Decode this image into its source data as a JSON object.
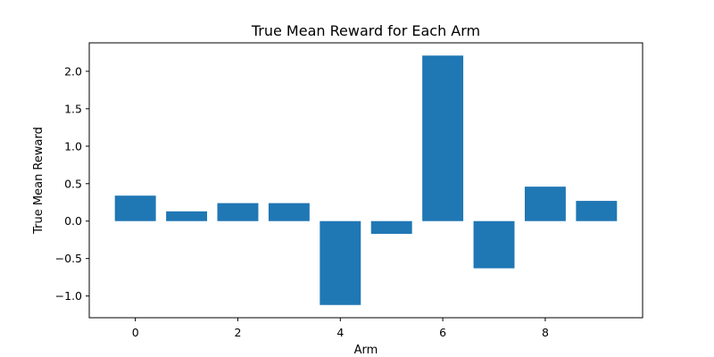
{
  "chart_data": {
    "type": "bar",
    "title": "True Mean Reward for Each Arm",
    "xlabel": "Arm",
    "ylabel": "True Mean Reward",
    "categories": [
      0,
      1,
      2,
      3,
      4,
      5,
      6,
      7,
      8,
      9
    ],
    "values": [
      0.34,
      0.13,
      0.24,
      0.24,
      -1.12,
      -0.17,
      2.21,
      -0.63,
      0.46,
      0.27
    ],
    "xlim": [
      -0.9,
      9.9
    ],
    "ylim": [
      -1.29,
      2.38
    ],
    "xticks": [
      0,
      2,
      4,
      6,
      8
    ],
    "xtick_labels": [
      "0",
      "2",
      "4",
      "6",
      "8"
    ],
    "yticks": [
      -1.0,
      -0.5,
      0.0,
      0.5,
      1.0,
      1.5,
      2.0
    ],
    "ytick_labels": [
      "−1.0",
      "−0.5",
      "0.0",
      "0.5",
      "1.0",
      "1.5",
      "2.0"
    ],
    "bar_color": "#1f77b4",
    "grid": false,
    "legend": "none"
  }
}
